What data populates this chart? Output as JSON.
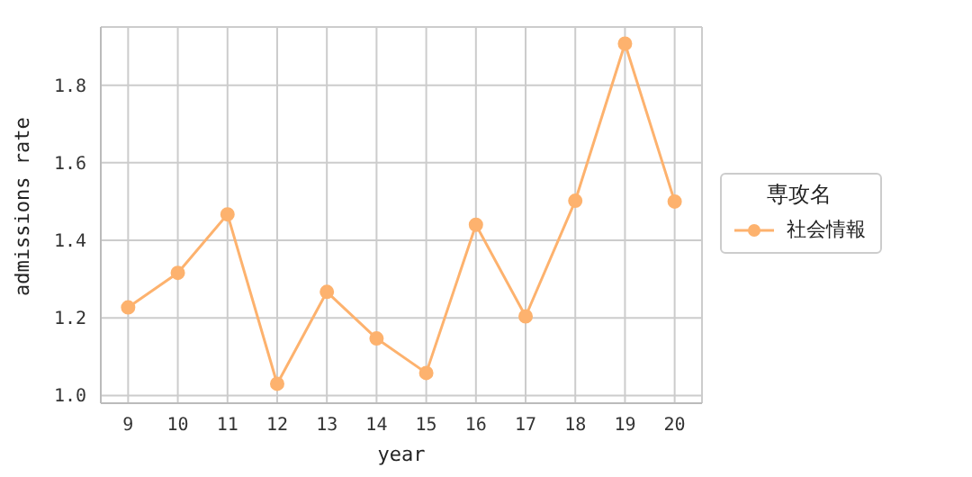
{
  "chart_data": {
    "type": "line",
    "xlabel": "year",
    "ylabel": "admissions rate",
    "legend_title": "専攻名",
    "categories": [
      "9",
      "10",
      "11",
      "12",
      "13",
      "14",
      "15",
      "16",
      "17",
      "18",
      "19",
      "20"
    ],
    "series": [
      {
        "name": "社会情報",
        "color": "#fdb26e",
        "values": [
          1.227,
          1.316,
          1.467,
          1.03,
          1.267,
          1.147,
          1.058,
          1.44,
          1.204,
          1.502,
          1.907,
          1.5
        ]
      }
    ],
    "ylim": [
      0.98,
      1.95
    ],
    "yticks": [
      {
        "value": 1,
        "label": "1.0"
      },
      {
        "value": 1.2,
        "label": "1.2"
      },
      {
        "value": 1.4,
        "label": "1.4"
      },
      {
        "value": 1.6,
        "label": "1.6"
      },
      {
        "value": 1.8,
        "label": "1.8"
      }
    ],
    "grid": true,
    "legend": "right",
    "marker": "circle",
    "line_style": "solid"
  }
}
